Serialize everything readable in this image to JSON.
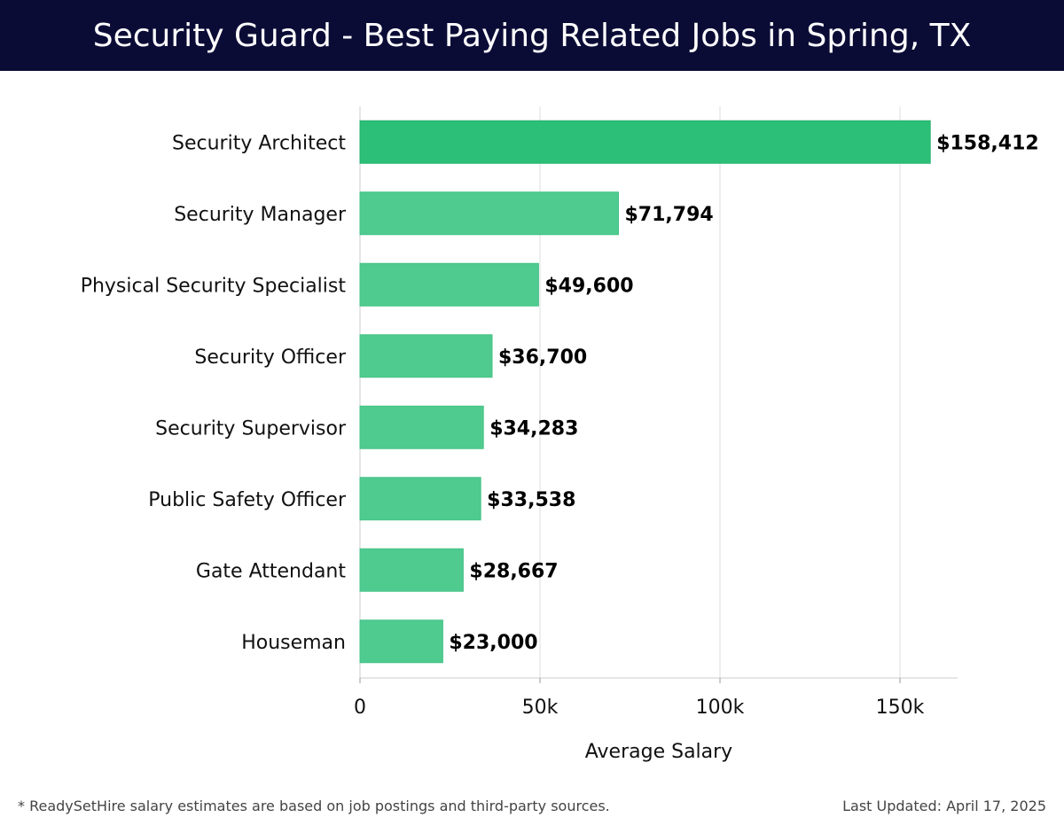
{
  "header": {
    "title": "Security Guard - Best Paying Related Jobs in Spring, TX"
  },
  "footer": {
    "note": "* ReadySetHire salary estimates are based on job postings and third-party sources.",
    "updated": "Last Updated: April 17, 2025"
  },
  "colors": {
    "header_bg": "#0b0c36",
    "bar_top": "#2bbf78",
    "bar": "#4fcb8f",
    "grid": "#dddddd"
  },
  "chart_data": {
    "type": "bar",
    "orientation": "horizontal",
    "categories": [
      "Security Architect",
      "Security Manager",
      "Physical Security Specialist",
      "Security Officer",
      "Security Supervisor",
      "Public Safety Officer",
      "Gate Attendant",
      "Houseman"
    ],
    "values": [
      158412,
      71794,
      49600,
      36700,
      34283,
      33538,
      28667,
      23000
    ],
    "value_labels": [
      "$158,412",
      "$71,794",
      "$49,600",
      "$36,700",
      "$34,283",
      "$33,538",
      "$28,667",
      "$23,000"
    ],
    "xlabel": "Average Salary",
    "xlim": [
      0,
      166000
    ],
    "xticks": [
      0,
      50000,
      100000,
      150000
    ],
    "xtick_labels": [
      "0",
      "50k",
      "100k",
      "150k"
    ],
    "grid": "vertical"
  }
}
